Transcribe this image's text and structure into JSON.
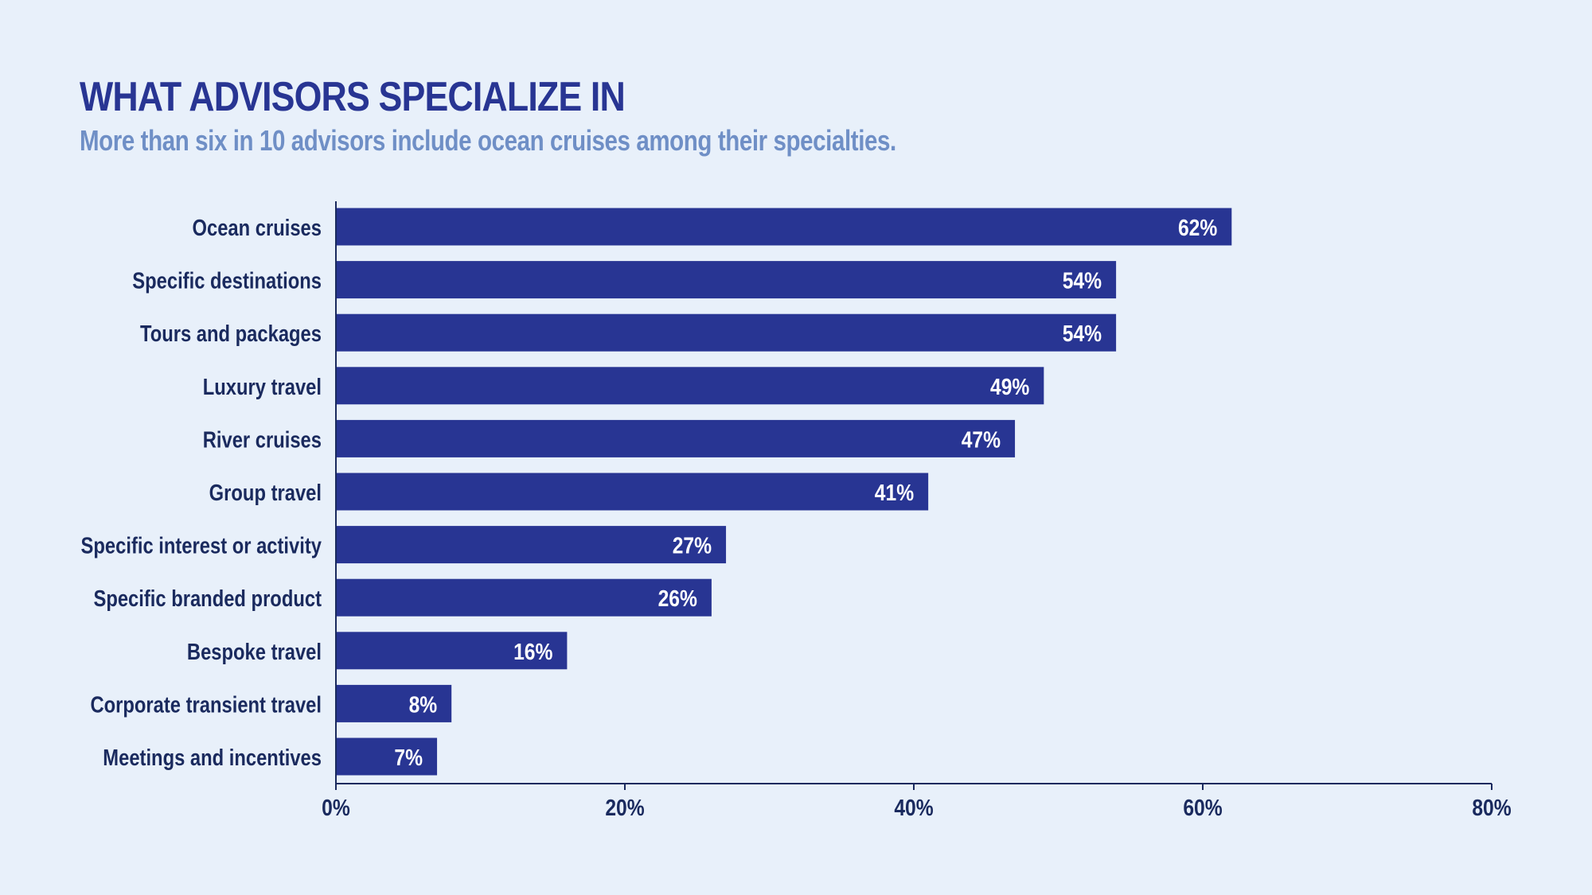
{
  "header": {
    "title": "WHAT ADVISORS SPECIALIZE IN",
    "subtitle": "More than six in 10 advisors include ocean cruises among their specialties."
  },
  "colors": {
    "background": "#e8f0fa",
    "bar": "#283593",
    "title": "#283593",
    "subtitle": "#6f8fc6",
    "label": "#1a2a5e",
    "bar_label": "#ffffff"
  },
  "chart_data": {
    "type": "bar",
    "orientation": "horizontal",
    "categories": [
      "Ocean cruises",
      "Specific destinations",
      "Tours and packages",
      "Luxury travel",
      "River cruises",
      "Group travel",
      "Specific interest or activity",
      "Specific branded product",
      "Bespoke travel",
      "Corporate transient travel",
      "Meetings and incentives"
    ],
    "values": [
      62,
      54,
      54,
      49,
      47,
      41,
      27,
      26,
      16,
      8,
      7
    ],
    "value_labels": [
      "62%",
      "54%",
      "54%",
      "49%",
      "47%",
      "41%",
      "27%",
      "26%",
      "16%",
      "8%",
      "7%"
    ],
    "xlim": [
      0,
      80
    ],
    "xticks": [
      0,
      20,
      40,
      60,
      80
    ],
    "xtick_labels": [
      "0%",
      "20%",
      "40%",
      "60%",
      "80%"
    ],
    "grid": false,
    "legend": "none"
  }
}
